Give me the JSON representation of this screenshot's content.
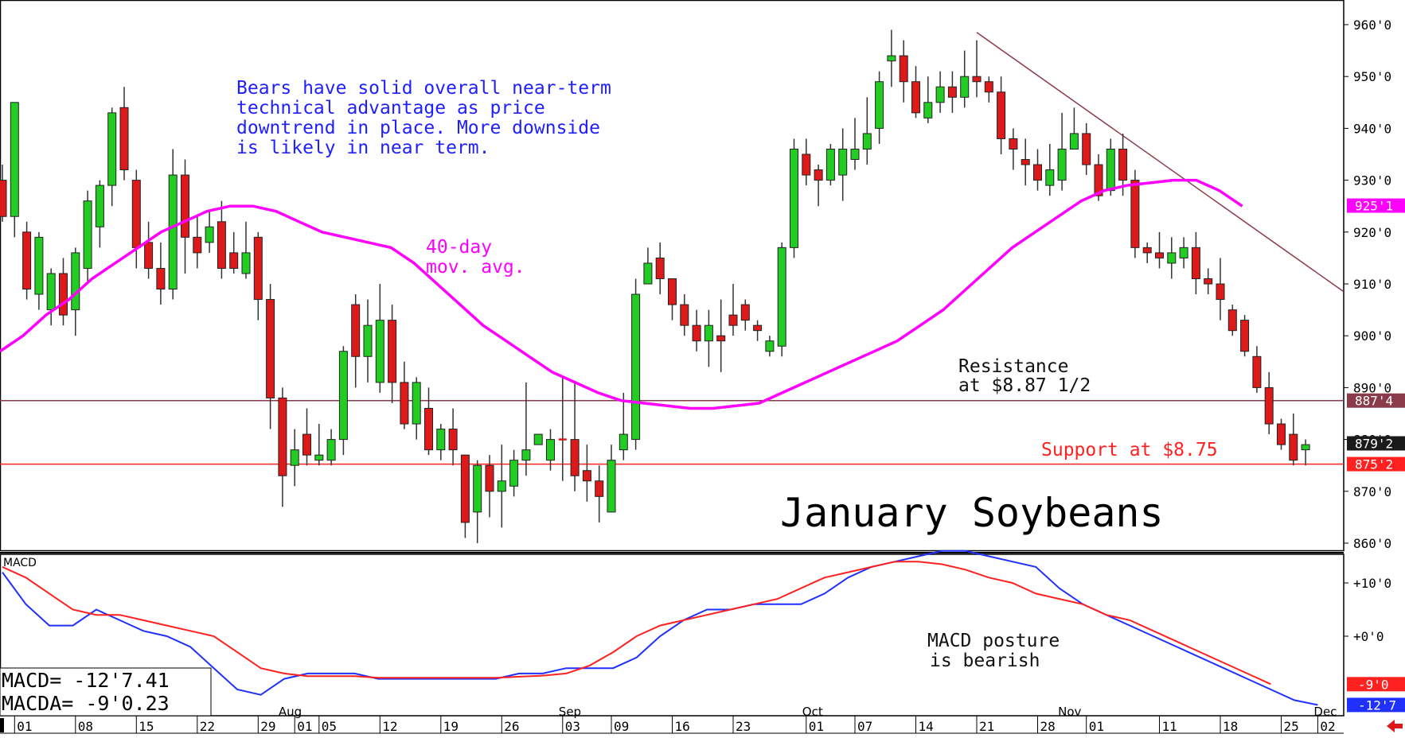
{
  "chart_data": [
    {
      "type": "candlestick",
      "title": "January Soybeans",
      "ylim": [
        857,
        963
      ],
      "y_ticks": [
        "960'0",
        "950'0",
        "940'0",
        "930'0",
        "920'0",
        "910'0",
        "900'0",
        "890'0",
        "880'0",
        "870'0",
        "860'0"
      ],
      "y_tick_values": [
        960,
        950,
        940,
        930,
        920,
        910,
        900,
        890,
        880,
        870,
        860
      ],
      "price_tags": [
        {
          "label": "925'1",
          "value": 925.1,
          "color": "#ff00ff"
        },
        {
          "label": "887'4",
          "value": 887.5,
          "color": "#8b3a4a"
        },
        {
          "label": "879'2",
          "value": 879.25,
          "color": "#1a1a1a"
        },
        {
          "label": "875'2",
          "value": 875.25,
          "color": "#ff2020"
        }
      ],
      "annotations": {
        "bears": [
          "Bears have solid overall near-term",
          "technical advantage as price",
          "downtrend in place. More downside",
          "is likely in near term."
        ],
        "mov_avg": [
          "40-day",
          "mov. avg."
        ],
        "resistance": [
          "Resistance",
          "at $8.87 1/2"
        ],
        "support": "Support at $8.75"
      },
      "series": [
        {
          "name": "price",
          "candles": [
            [
              930,
              923,
              933,
              922
            ],
            [
              923,
              945,
              945,
              919
            ],
            [
              920,
              909,
              922,
              907
            ],
            [
              908,
              919,
              920,
              905
            ],
            [
              905,
              912,
              913,
              902
            ],
            [
              912,
              904,
              915,
              902
            ],
            [
              905,
              916,
              917,
              900
            ],
            [
              913,
              926,
              928,
              910
            ],
            [
              921,
              929,
              930,
              917
            ],
            [
              929,
              943,
              944,
              925
            ],
            [
              944,
              932,
              948,
              930
            ],
            [
              930,
              917,
              932,
              913
            ],
            [
              918,
              913,
              922,
              911
            ],
            [
              913,
              909,
              918,
              906
            ],
            [
              909,
              931,
              936,
              907
            ],
            [
              931,
              919,
              934,
              912
            ],
            [
              919,
              916,
              923,
              913
            ],
            [
              918,
              921,
              924,
              916
            ],
            [
              922,
              913,
              926,
              911
            ],
            [
              916,
              913,
              920,
              912
            ],
            [
              912,
              916,
              922,
              911
            ],
            [
              919,
              907,
              920,
              903
            ],
            [
              907,
              888,
              910,
              882
            ],
            [
              888,
              873,
              890,
              867
            ],
            [
              875,
              878,
              882,
              871
            ],
            [
              881,
              877,
              886,
              875
            ],
            [
              876,
              877,
              883,
              875
            ],
            [
              876,
              880,
              882,
              875
            ],
            [
              880,
              897,
              898,
              877
            ],
            [
              906,
              896,
              908,
              890
            ],
            [
              896,
              902,
              907,
              891
            ],
            [
              891,
              903,
              910,
              889
            ],
            [
              903,
              891,
              906,
              887
            ],
            [
              891,
              883,
              895,
              882
            ],
            [
              883,
              891,
              892,
              880
            ],
            [
              886,
              878,
              890,
              877
            ],
            [
              878,
              882,
              883,
              876
            ],
            [
              882,
              878,
              886,
              875
            ],
            [
              877,
              864,
              877,
              861
            ],
            [
              866,
              875,
              876,
              860
            ],
            [
              875,
              870,
              877,
              865
            ],
            [
              870,
              872,
              879,
              863
            ],
            [
              871,
              876,
              878,
              869
            ],
            [
              876,
              878,
              891,
              873
            ],
            [
              879,
              881,
              881,
              879
            ],
            [
              876,
              880,
              882,
              874
            ],
            [
              880,
              880,
              892,
              872
            ],
            [
              880,
              873,
              891,
              870
            ],
            [
              874,
              872,
              879,
              868
            ],
            [
              872,
              869,
              875,
              864
            ],
            [
              866,
              876,
              879,
              868
            ],
            [
              878,
              881,
              889,
              876
            ],
            [
              880,
              908,
              911,
              878
            ],
            [
              910,
              914,
              917,
              911
            ],
            [
              915,
              911,
              918,
              908
            ],
            [
              911,
              906,
              910,
              903
            ],
            [
              906,
              902,
              908,
              900
            ],
            [
              902,
              899,
              905,
              897
            ],
            [
              899,
              902,
              905,
              894
            ],
            [
              900,
              899,
              907,
              893
            ],
            [
              904,
              902,
              910,
              900
            ],
            [
              906,
              903,
              907,
              901
            ],
            [
              902,
              901,
              903,
              899
            ],
            [
              897,
              899,
              900,
              896
            ],
            [
              898,
              917,
              918,
              896
            ],
            [
              917,
              936,
              938,
              915
            ],
            [
              935,
              931,
              938,
              929
            ],
            [
              932,
              930,
              933,
              925
            ],
            [
              930,
              936,
              937,
              929
            ],
            [
              931,
              936,
              940,
              926
            ],
            [
              934,
              936,
              942,
              932
            ],
            [
              936,
              939,
              946,
              933
            ],
            [
              940,
              949,
              951,
              937
            ],
            [
              953,
              954,
              959,
              948
            ],
            [
              954,
              949,
              957,
              945
            ],
            [
              949,
              943,
              952,
              942
            ],
            [
              942,
              945,
              950,
              941
            ],
            [
              945,
              948,
              951,
              943
            ],
            [
              948,
              946,
              951,
              943
            ],
            [
              946,
              950,
              955,
              944
            ],
            [
              950,
              949,
              957,
              946
            ],
            [
              949,
              947,
              950,
              945
            ],
            [
              947,
              938,
              950,
              935
            ],
            [
              938,
              936,
              940,
              932
            ],
            [
              934,
              933,
              938,
              929
            ],
            [
              933,
              930,
              936,
              928
            ],
            [
              929,
              932,
              937,
              927
            ],
            [
              930,
              936,
              943,
              928
            ],
            [
              936,
              939,
              944,
              937
            ],
            [
              939,
              933,
              941,
              931
            ],
            [
              933,
              927,
              935,
              926
            ],
            [
              928,
              936,
              938,
              927
            ],
            [
              936,
              930,
              939,
              927
            ],
            [
              930,
              917,
              932,
              915
            ],
            [
              917,
              916,
              918,
              914
            ],
            [
              916,
              915,
              920,
              913
            ],
            [
              914,
              916,
              919,
              911
            ],
            [
              915,
              917,
              919,
              913
            ],
            [
              917,
              911,
              920,
              908
            ],
            [
              911,
              910,
              913,
              908
            ],
            [
              910,
              907,
              915,
              903
            ],
            [
              905,
              901,
              906,
              900
            ],
            [
              903,
              897,
              904,
              896
            ],
            [
              896,
              890,
              898,
              889
            ],
            [
              890,
              883,
              893,
              881
            ],
            [
              883,
              879,
              884,
              878
            ],
            [
              881,
              876,
              885,
              875
            ],
            [
              878,
              879,
              880,
              875
            ]
          ]
        },
        {
          "name": "40-day mov. avg.",
          "values": [
            897,
            900,
            904,
            907,
            911,
            914,
            917,
            920,
            922,
            924,
            925,
            925,
            924,
            922,
            920,
            919,
            918,
            917,
            914,
            910,
            906,
            902,
            899,
            896,
            893,
            891,
            889,
            887.5,
            887,
            886.5,
            886,
            886,
            886.5,
            887,
            889,
            891,
            893,
            895,
            897,
            899,
            902,
            905,
            909,
            913,
            917,
            920,
            923,
            926,
            928,
            929,
            929.5,
            930,
            930,
            928,
            925
          ]
        }
      ]
    },
    {
      "type": "line",
      "title": "MACD",
      "y_ticks": [
        "+10'0",
        "+0'0"
      ],
      "readout": [
        "MACD=  -12'7.41",
        "MACDA=  -9'0.23"
      ],
      "value_tags": [
        {
          "label": "-9'0",
          "value": -9.0,
          "color": "#ff2020"
        },
        {
          "label": "-12'7",
          "value": -12.9,
          "color": "#2030ff"
        }
      ],
      "annotation": [
        "MACD posture",
        "is bearish"
      ],
      "series": [
        {
          "name": "MACD",
          "values": [
            12,
            6,
            2,
            2,
            5,
            3,
            1,
            0,
            -2,
            -6,
            -10,
            -11,
            -8,
            -7,
            -7,
            -7,
            -8,
            -8,
            -8,
            -8,
            -8,
            -8,
            -7,
            -7,
            -6,
            -6,
            -6,
            -4,
            0,
            3,
            5,
            5,
            6,
            6,
            6,
            8,
            11,
            13,
            14,
            15,
            16,
            16,
            15,
            14,
            13,
            9,
            6,
            4,
            2,
            0,
            -2,
            -4,
            -6,
            -8,
            -10,
            -12,
            -12.9
          ]
        },
        {
          "name": "MACDA",
          "values": [
            13,
            11,
            8,
            5,
            4,
            4,
            3,
            2,
            1,
            0,
            -3,
            -6,
            -7,
            -7.5,
            -7.5,
            -7.5,
            -7.8,
            -7.8,
            -7.8,
            -7.8,
            -7.8,
            -7.8,
            -7.6,
            -7.4,
            -7.0,
            -5.5,
            -3,
            0,
            2,
            3,
            4,
            5,
            6,
            7,
            9,
            11,
            12,
            13,
            14,
            14,
            13.5,
            12.5,
            11,
            10,
            8,
            7,
            6,
            4,
            3,
            1,
            -1,
            -3,
            -5,
            -7,
            -9
          ]
        }
      ]
    }
  ],
  "x_axis": {
    "months": [
      {
        "label": "Aug",
        "index": 23
      },
      {
        "label": "Sep",
        "index": 46
      },
      {
        "label": "Oct",
        "index": 66
      },
      {
        "label": "Nov",
        "index": 87
      },
      {
        "label": "Dec",
        "index": 108
      }
    ],
    "days": [
      {
        "label": "01",
        "index": 1
      },
      {
        "label": "08",
        "index": 6
      },
      {
        "label": "15",
        "index": 11
      },
      {
        "label": "22",
        "index": 16
      },
      {
        "label": "29",
        "index": 21
      },
      {
        "label": "01",
        "index": 24
      },
      {
        "label": "05",
        "index": 26
      },
      {
        "label": "12",
        "index": 31
      },
      {
        "label": "19",
        "index": 36
      },
      {
        "label": "26",
        "index": 41
      },
      {
        "label": "03",
        "index": 46
      },
      {
        "label": "09",
        "index": 50
      },
      {
        "label": "16",
        "index": 55
      },
      {
        "label": "23",
        "index": 60
      },
      {
        "label": "01",
        "index": 66
      },
      {
        "label": "07",
        "index": 70
      },
      {
        "label": "14",
        "index": 75
      },
      {
        "label": "21",
        "index": 80
      },
      {
        "label": "28",
        "index": 85
      },
      {
        "label": "01",
        "index": 89
      },
      {
        "label": "11",
        "index": 95
      },
      {
        "label": "18",
        "index": 100
      },
      {
        "label": "25",
        "index": 105
      },
      {
        "label": "02",
        "index": 108
      }
    ]
  },
  "colors": {
    "up": "#22cc22",
    "down": "#dd1a1a",
    "mov_avg": "#ff00ff",
    "macd": "#2030ff",
    "macda": "#ff2020",
    "resistance": "#8b3a4a",
    "support": "#ff2020",
    "trendline": "#8b3a4a",
    "annotation_blue": "#2020ff"
  }
}
